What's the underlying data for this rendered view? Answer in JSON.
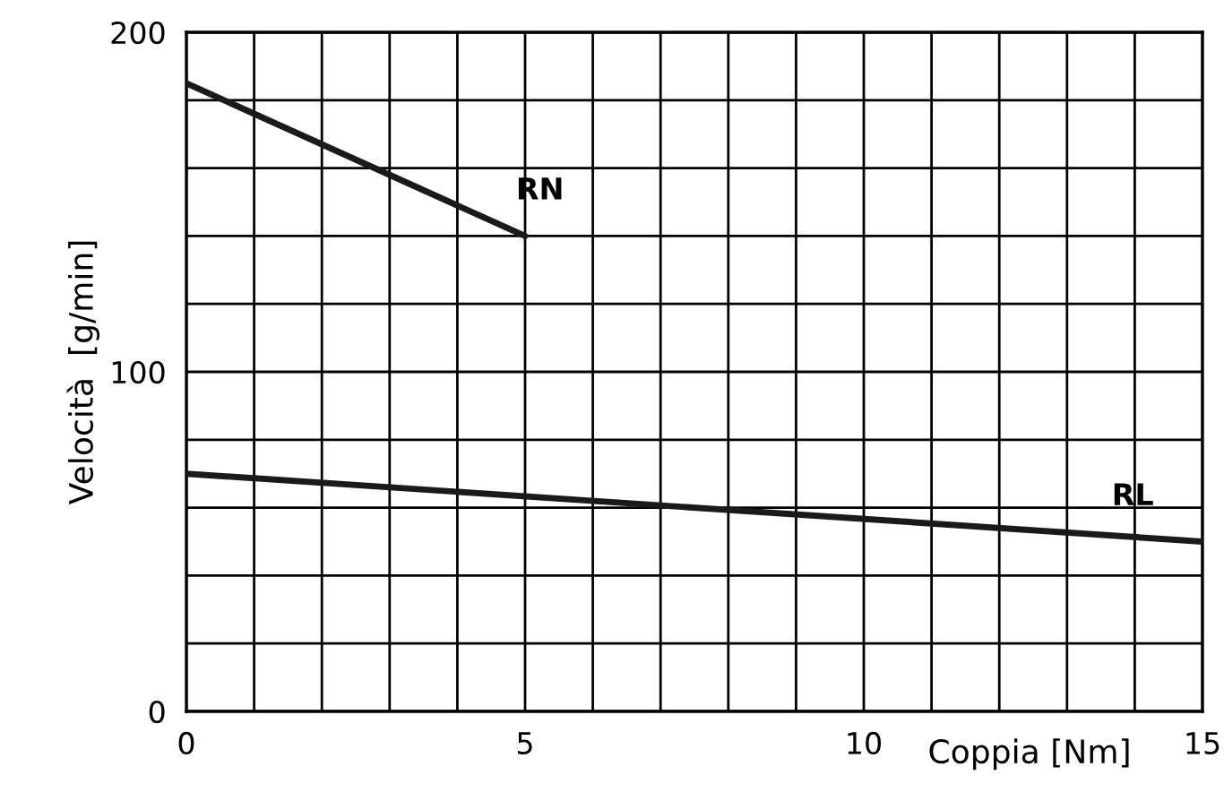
{
  "chart_data": {
    "type": "line",
    "xlabel": "Coppia [Nm]",
    "ylabel": "Velocità  [g/min]",
    "xlim": [
      0,
      15
    ],
    "xticks": [
      0,
      5,
      10,
      15
    ],
    "ylim": [
      0,
      200
    ],
    "yticks": [
      0,
      100,
      200
    ],
    "grid": true,
    "marker": "none",
    "line_style": "solid",
    "series": [
      {
        "name": "RN",
        "color": "#1a1a1a",
        "x": [
          0,
          5
        ],
        "values": [
          185,
          140
        ]
      },
      {
        "name": "RL",
        "color": "#1a1a1a",
        "x": [
          0,
          15
        ],
        "values": [
          70,
          50
        ]
      }
    ]
  }
}
